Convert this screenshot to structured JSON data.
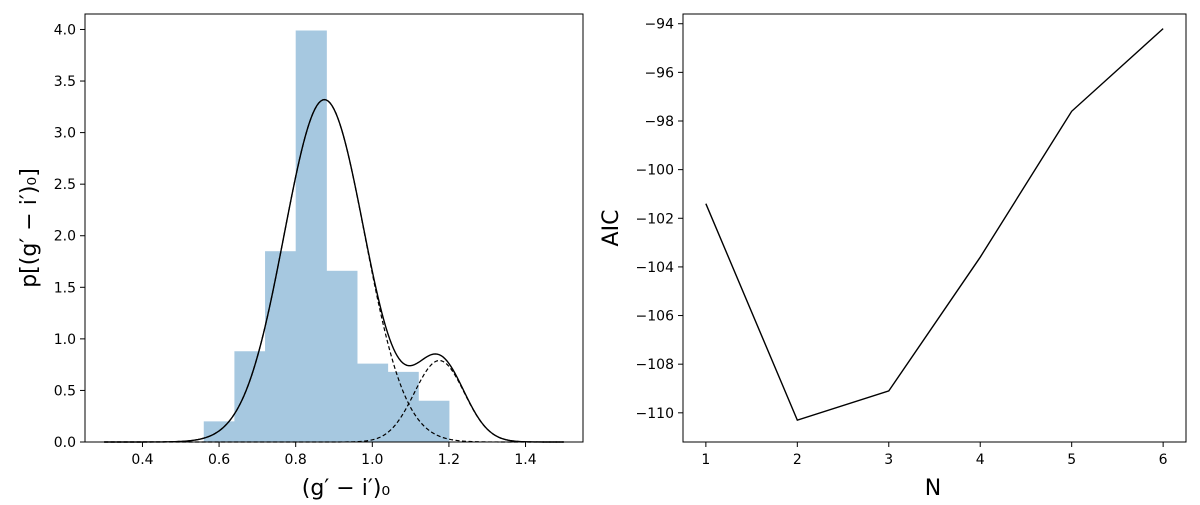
{
  "chart_data": [
    {
      "type": "bar",
      "subtype": "histogram-with-mixture-fit",
      "xlabel": "(g′ − i′)₀",
      "ylabel": "p[(g′ − i′)₀]",
      "xlim": [
        0.25,
        1.55
      ],
      "ylim": [
        0,
        4.15
      ],
      "xticks": [
        0.4,
        0.6,
        0.8,
        1.0,
        1.2,
        1.4
      ],
      "xtick_labels": [
        "0.4",
        "0.6",
        "0.8",
        "1.0",
        "1.2",
        "1.4"
      ],
      "yticks": [
        0.0,
        0.5,
        1.0,
        1.5,
        2.0,
        2.5,
        3.0,
        3.5,
        4.0
      ],
      "ytick_labels": [
        "0.0",
        "0.5",
        "1.0",
        "1.5",
        "2.0",
        "2.5",
        "3.0",
        "3.5",
        "4.0"
      ],
      "bins": [
        {
          "x0": 0.56,
          "x1": 0.64,
          "value": 0.2
        },
        {
          "x0": 0.64,
          "x1": 0.72,
          "value": 0.88
        },
        {
          "x0": 0.72,
          "x1": 0.8,
          "value": 1.85
        },
        {
          "x0": 0.8,
          "x1": 0.88,
          "value": 3.99
        },
        {
          "x0": 0.88,
          "x1": 0.96,
          "value": 1.66
        },
        {
          "x0": 0.96,
          "x1": 1.04,
          "value": 0.76
        },
        {
          "x0": 1.04,
          "x1": 1.12,
          "value": 0.68
        },
        {
          "x0": 1.12,
          "x1": 1.2,
          "value": 0.4
        }
      ],
      "components": [
        {
          "mean": 0.875,
          "sigma": 0.105,
          "amplitude": 3.32
        },
        {
          "mean": 1.175,
          "sigma": 0.065,
          "amplitude": 0.79
        }
      ],
      "curve_range": [
        0.3,
        1.5
      ],
      "bar_color": "#a6c8e0",
      "line_color": "#000000",
      "grid": false
    },
    {
      "type": "line",
      "xlabel": "N",
      "ylabel": "AIC",
      "x": [
        1,
        2,
        3,
        4,
        5,
        6
      ],
      "y": [
        -101.4,
        -110.3,
        -109.1,
        -103.6,
        -97.6,
        -94.2
      ],
      "xlim": [
        0.75,
        6.25
      ],
      "ylim": [
        -111.2,
        -93.6
      ],
      "xticks": [
        1,
        2,
        3,
        4,
        5,
        6
      ],
      "xtick_labels": [
        "1",
        "2",
        "3",
        "4",
        "5",
        "6"
      ],
      "yticks": [
        -110,
        -108,
        -106,
        -104,
        -102,
        -100,
        -98,
        -96,
        -94
      ],
      "ytick_labels": [
        "−110",
        "−108",
        "−106",
        "−104",
        "−102",
        "−100",
        "−98",
        "−96",
        "−94"
      ],
      "line_color": "#000000",
      "grid": false
    }
  ]
}
